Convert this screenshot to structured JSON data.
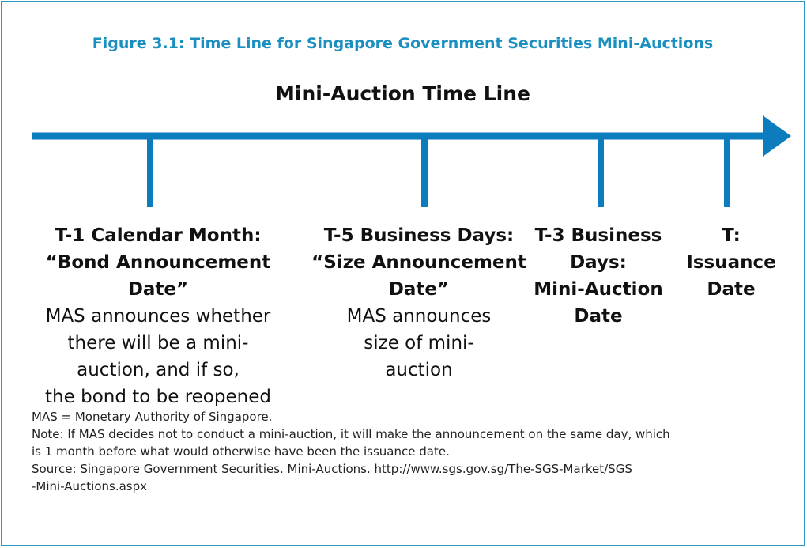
{
  "figure_title": "Figure 3.1: Time Line for Singapore Government Securities Mini-Auctions",
  "timeline_title": "Mini-Auction Time Line",
  "milestones": [
    {
      "heading": [
        "T-1 Calendar Month:",
        "“Bond Announcement",
        "Date”"
      ],
      "description": [
        "MAS announces whether",
        "there will be a mini-",
        "auction, and if so,",
        "the bond to be reopened"
      ]
    },
    {
      "heading": [
        "T-5 Business Days:",
        "“Size Announcement",
        "Date”"
      ],
      "description": [
        "MAS announces",
        "size of mini-",
        "auction"
      ]
    },
    {
      "heading": [
        "T-3 Business",
        "Days:",
        "Mini-Auction",
        "Date"
      ],
      "description": []
    },
    {
      "heading": [
        "T:",
        "Issuance",
        "Date"
      ],
      "description": []
    }
  ],
  "notes": [
    "MAS = Monetary Authority of Singapore.",
    "Note: If MAS decides not to conduct a mini-auction, it will make the announcement on the same day, which",
    "is 1 month before what would otherwise have been the issuance date.",
    "Source: Singapore Government Securities. Mini-Auctions. http://www.sgs.gov.sg/The-SGS-Market/SGS",
    "-Mini-Auctions.aspx"
  ]
}
